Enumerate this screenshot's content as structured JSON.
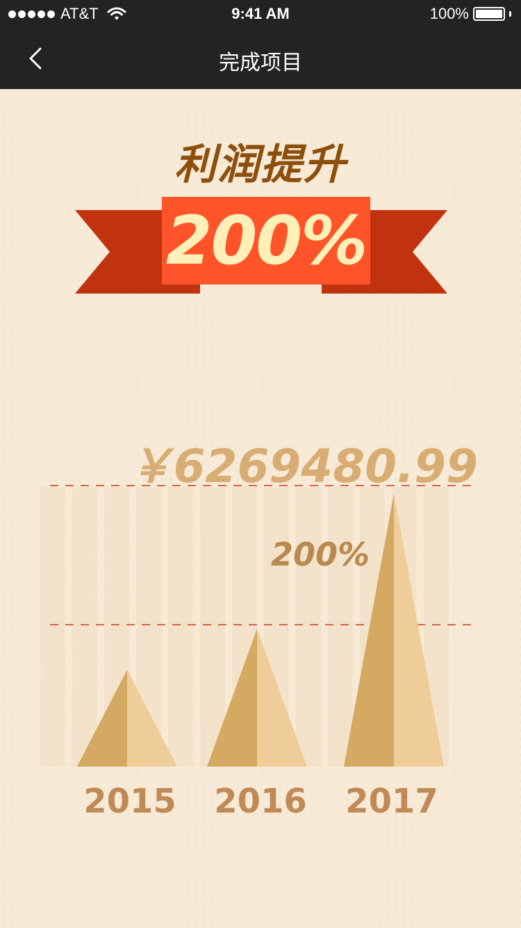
{
  "status_bar": {
    "carrier": "AT&T",
    "time": "9:41 AM",
    "battery": "100%",
    "battery_level": 1.0,
    "signal_icon": "signal-dots-icon",
    "wifi_icon": "wifi-icon",
    "battery_icon": "battery-icon"
  },
  "nav": {
    "title": "完成项目",
    "back_icon": "chevron-left-icon"
  },
  "hero": {
    "headline": "利润提升",
    "percent": "200%"
  },
  "colors": {
    "background": "#f7ead6",
    "navbar": "#232323",
    "headline": "#8c4f0c",
    "ribbon_dark": "#c1330f",
    "ribbon_light": "#ff5429",
    "ribbon_text": "#fff0b8",
    "pyramid_dark": "#d4a962",
    "pyramid_light": "#efcd98",
    "dashed_line": "#c8391c"
  },
  "chart_data": {
    "type": "bar",
    "amount_label": "￥6269480.99",
    "growth_label": "200%",
    "categories": [
      "2015",
      "2016",
      "2017"
    ],
    "values": [
      1,
      1.42,
      2.82
    ],
    "ylim": [
      0,
      2.9
    ]
  }
}
